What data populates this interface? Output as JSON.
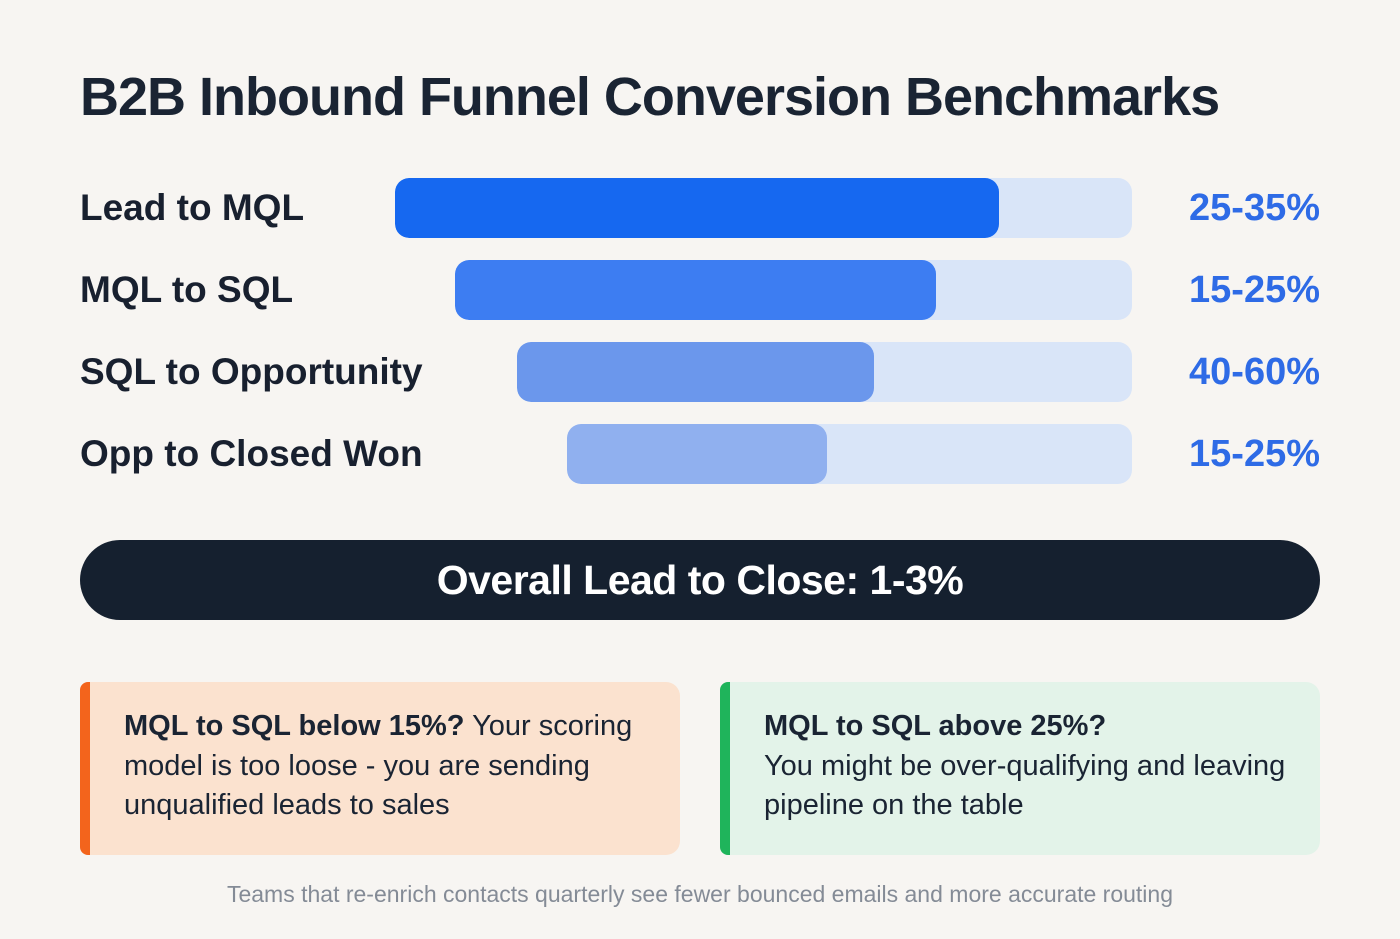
{
  "title": "B2B Inbound Funnel Conversion Benchmarks",
  "funnel": {
    "track_color": "#d9e5f8",
    "rows": [
      {
        "label": "Lead to MQL",
        "value": "25-35%",
        "fill_color": "#1668f0",
        "indent_pct": 0,
        "fill_pct": 82
      },
      {
        "label": "MQL to SQL",
        "value": "15-25%",
        "fill_color": "#3d7df2",
        "indent_pct": 8.1,
        "fill_pct": 71
      },
      {
        "label": "SQL to Opportunity",
        "value": "40-60%",
        "fill_color": "#6b97ec",
        "indent_pct": 16.6,
        "fill_pct": 58
      },
      {
        "label": "Opp to Closed Won",
        "value": "15-25%",
        "fill_color": "#90b0ef",
        "indent_pct": 23.4,
        "fill_pct": 46
      }
    ]
  },
  "banner": {
    "text": "Overall Lead to Close: 1-3%",
    "bg": "#15202f",
    "text_color": "#ffffff"
  },
  "callouts": [
    {
      "heading": "MQL to SQL below 15%?",
      "body": "Your scoring model is too loose - you are sending unqualified leads to sales",
      "accent": "#f3641c",
      "bg": "#fbe2cf"
    },
    {
      "heading": "MQL to SQL above 25%?",
      "body": "You might be over-qualifying and leaving pipeline on the table",
      "accent": "#1fb45b",
      "bg": "#e3f3e9"
    }
  ],
  "footer": "Teams that re-enrich contacts quarterly see fewer bounced emails and more accurate routing",
  "accent_colors": {
    "value_text": "#2e6be6",
    "heading_text": "#1a2433",
    "background": "#f7f5f2"
  },
  "chart_data": {
    "type": "bar",
    "subtype": "funnel",
    "title": "B2B Inbound Funnel Conversion Benchmarks",
    "categories": [
      "Lead to MQL",
      "MQL to SQL",
      "SQL to Opportunity",
      "Opp to Closed Won"
    ],
    "value_labels": [
      "25-35%",
      "15-25%",
      "40-60%",
      "15-25%"
    ],
    "ranges": [
      {
        "low": 25,
        "high": 35
      },
      {
        "low": 15,
        "high": 25
      },
      {
        "low": 40,
        "high": 60
      },
      {
        "low": 15,
        "high": 25
      }
    ],
    "overall": {
      "label": "Overall Lead to Close",
      "value": "1-3%",
      "low": 1,
      "high": 3
    },
    "unit": "%",
    "legend": false,
    "grid": false,
    "orientation": "horizontal"
  }
}
